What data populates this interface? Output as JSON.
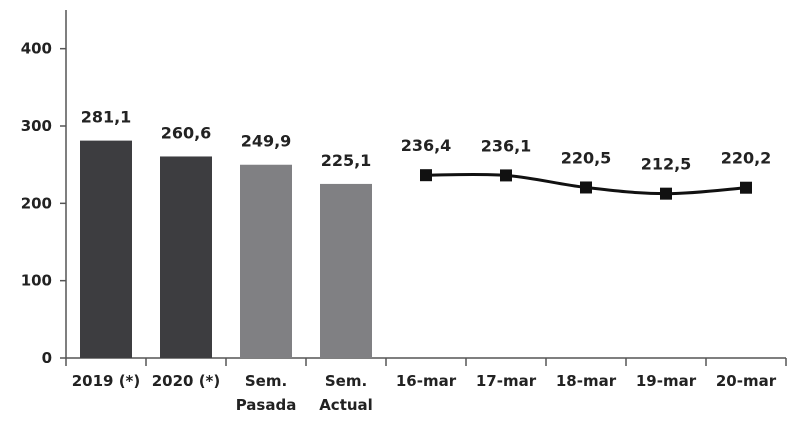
{
  "chart_data": {
    "type": "bar",
    "title": "",
    "xlabel": "",
    "ylabel": "",
    "ylim": [
      0,
      450
    ],
    "yticks": [
      0,
      100,
      200,
      300,
      400
    ],
    "ytick_labels": [
      "0",
      "100",
      "200",
      "300",
      "400"
    ],
    "grid": false,
    "legend": "none",
    "categories": [
      [
        "2019 (*)"
      ],
      [
        "2020 (*)"
      ],
      [
        "Sem.",
        "Pasada"
      ],
      [
        "Sem.",
        "Actual"
      ],
      [
        "16-mar"
      ],
      [
        "17-mar"
      ],
      [
        "18-mar"
      ],
      [
        "19-mar"
      ],
      [
        "20-mar"
      ]
    ],
    "bars": [
      {
        "category_index": 0,
        "value": 281.1,
        "label": "281,1",
        "color": "#3d3d40"
      },
      {
        "category_index": 1,
        "value": 260.6,
        "label": "260,6",
        "color": "#3d3d40"
      },
      {
        "category_index": 2,
        "value": 249.9,
        "label": "249,9",
        "color": "#808083"
      },
      {
        "category_index": 3,
        "value": 225.1,
        "label": "225,1",
        "color": "#808083"
      }
    ],
    "line": {
      "type": "line",
      "marker": "square",
      "smooth": true,
      "color": "#111111",
      "points": [
        {
          "category_index": 4,
          "value": 236.4,
          "label": "236,4"
        },
        {
          "category_index": 5,
          "value": 236.1,
          "label": "236,1"
        },
        {
          "category_index": 6,
          "value": 220.5,
          "label": "220,5"
        },
        {
          "category_index": 7,
          "value": 212.5,
          "label": "212,5"
        },
        {
          "category_index": 8,
          "value": 220.2,
          "label": "220,2"
        }
      ]
    },
    "axis_color": "#555555"
  }
}
